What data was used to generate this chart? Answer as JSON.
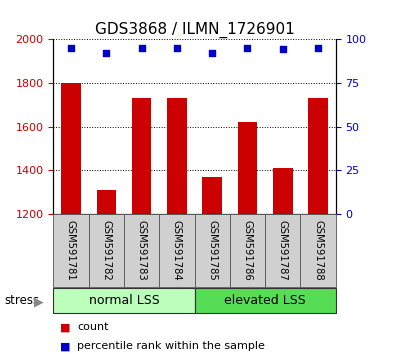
{
  "title": "GDS3868 / ILMN_1726901",
  "samples": [
    "GSM591781",
    "GSM591782",
    "GSM591783",
    "GSM591784",
    "GSM591785",
    "GSM591786",
    "GSM591787",
    "GSM591788"
  ],
  "counts": [
    1800,
    1310,
    1730,
    1730,
    1370,
    1620,
    1410,
    1730
  ],
  "percentile_ranks": [
    95,
    92,
    95,
    95,
    92,
    95,
    94,
    95
  ],
  "groups": [
    {
      "label": "normal LSS",
      "start": 0,
      "end": 4,
      "color": "#aaffaa"
    },
    {
      "label": "elevated LSS",
      "start": 4,
      "end": 8,
      "color": "#44ee44"
    }
  ],
  "ymin": 1200,
  "ymax": 2000,
  "yticks_left": [
    1200,
    1400,
    1600,
    1800,
    2000
  ],
  "yticks_right": [
    0,
    25,
    50,
    75,
    100
  ],
  "bar_color": "#cc0000",
  "dot_color": "#0000cc",
  "bar_width": 0.55,
  "grid_color": "#000000",
  "stress_label": "stress",
  "legend_count_label": "count",
  "legend_percentile_label": "percentile rank within the sample",
  "title_fontsize": 11,
  "axis_label_color_left": "#cc0000",
  "axis_label_color_right": "#0000cc",
  "label_box_color": "#d0d0d0",
  "group_normal_color": "#bbffbb",
  "group_elevated_color": "#55dd55"
}
